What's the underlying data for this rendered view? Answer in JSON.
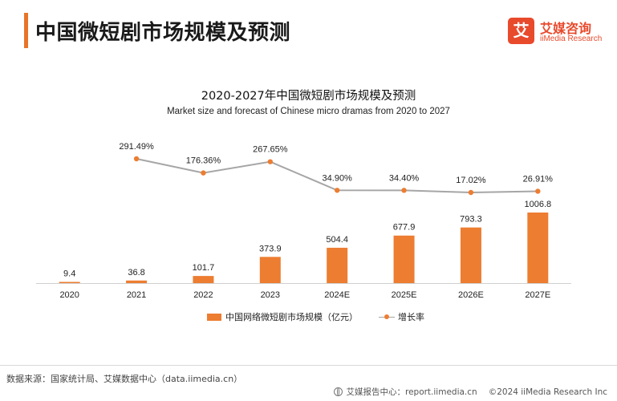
{
  "header": {
    "title": "中国微短剧市场规模及预测",
    "accent_color": "#e8742a"
  },
  "logo": {
    "mark": "艾",
    "cn": "艾媒咨询",
    "en": "iiMedia Research",
    "color": "#e84a2c"
  },
  "chart_data": {
    "type": "bar",
    "title": "2020-2027年中国微短剧市场规模及预测",
    "subtitle": "Market size and forecast of Chinese micro dramas from 2020 to 2027",
    "categories": [
      "2020",
      "2021",
      "2022",
      "2023",
      "2024E",
      "2025E",
      "2026E",
      "2027E"
    ],
    "series": [
      {
        "name": "中国网络微短剧市场规模（亿元）",
        "type": "bar",
        "color": "#ed7d31",
        "values": [
          9.4,
          36.8,
          101.7,
          373.9,
          504.4,
          677.9,
          793.3,
          1006.8
        ],
        "labels": [
          "9.4",
          "36.8",
          "101.7",
          "373.9",
          "504.4",
          "677.9",
          "793.3",
          "1006.8"
        ]
      },
      {
        "name": "增长率",
        "type": "line",
        "line_color": "#a6a6a6",
        "marker_color": "#ed7d31",
        "values": [
          null,
          291.49,
          176.36,
          267.65,
          34.9,
          34.4,
          17.02,
          26.91
        ],
        "labels": [
          "",
          "291.49%",
          "176.36%",
          "267.65%",
          "34.90%",
          "34.40%",
          "17.02%",
          "26.91%"
        ]
      }
    ],
    "legend_position": "bottom",
    "grid": false
  },
  "footer": {
    "source": "数据来源：国家统计局、艾媒数据中心（data.iimedia.cn）",
    "report_center": "艾媒报告中心：report.iimedia.cn",
    "copyright": "©2024  iiMedia Research Inc"
  }
}
